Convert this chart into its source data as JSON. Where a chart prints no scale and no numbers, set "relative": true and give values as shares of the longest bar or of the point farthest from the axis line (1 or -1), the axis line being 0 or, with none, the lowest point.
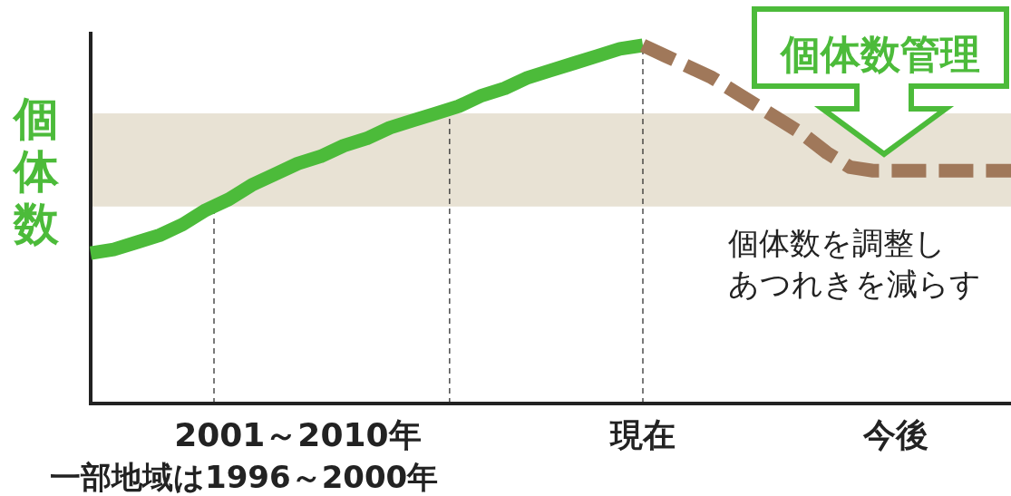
{
  "chart_data": {
    "type": "line",
    "relative": true,
    "ylabel": "個体数",
    "categories": [
      null,
      null,
      null,
      null,
      null,
      null,
      null,
      null,
      null,
      "2001～2010年",
      null,
      null,
      null,
      null,
      null,
      null,
      null,
      null,
      null,
      null,
      null,
      null,
      null,
      null,
      "現在",
      null,
      null,
      null,
      null,
      null,
      null,
      null,
      null,
      null,
      null,
      "今後",
      null,
      null,
      null,
      null,
      null
    ],
    "series": [
      {
        "color": "#4cbb3a",
        "line_style": "solid",
        "values": [
          0.42,
          0.43,
          0.45,
          0.47,
          0.5,
          0.54,
          0.57,
          0.61,
          0.64,
          0.67,
          0.69,
          0.72,
          0.74,
          0.77,
          0.79,
          0.81,
          0.83,
          0.86,
          0.88,
          0.91,
          0.93,
          0.95,
          0.97,
          0.99,
          1,
          null,
          null,
          null,
          null,
          null,
          null,
          null,
          null,
          null,
          null,
          null,
          null,
          null,
          null,
          null,
          null
        ]
      },
      {
        "color": "#a0785a",
        "line_style": "dashed",
        "values": [
          null,
          null,
          null,
          null,
          null,
          null,
          null,
          null,
          null,
          null,
          null,
          null,
          null,
          null,
          null,
          null,
          null,
          null,
          null,
          null,
          null,
          null,
          null,
          null,
          1,
          0.97,
          0.94,
          0.91,
          0.87,
          0.83,
          0.79,
          0.75,
          0.7,
          0.66,
          0.65,
          0.65,
          0.65,
          0.65,
          0.65,
          0.65,
          0.65
        ]
      }
    ],
    "bands": [
      {
        "axis": "y",
        "from": 0.55,
        "to": 0.81,
        "color": "#e8e2d4"
      }
    ],
    "ref_lines": [
      {
        "axis": "x",
        "value": "現在",
        "line_style": "dashed"
      }
    ],
    "annotations": [
      "個体数管理",
      "個体数を調整し",
      "あつれきを減らす",
      "一部地域は1996～2000年"
    ]
  }
}
